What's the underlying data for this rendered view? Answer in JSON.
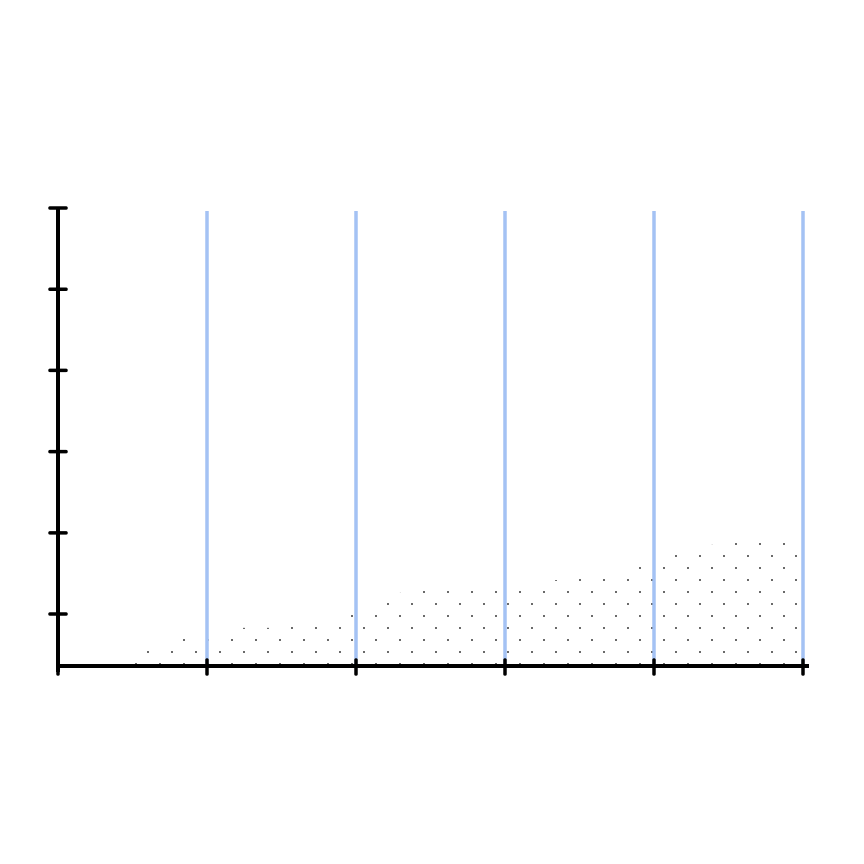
{
  "chart_data": {
    "type": "area",
    "x": [
      0.42,
      0.75,
      1.15,
      1.49,
      1.83,
      2.09,
      2.43,
      2.97,
      3.37,
      3.7,
      4.04,
      4.38,
      4.71,
      4.98
    ],
    "values": [
      0.43,
      0.72,
      0.83,
      0.83,
      0.93,
      1.11,
      1.36,
      1.39,
      1.42,
      1.52,
      1.73,
      1.85,
      1.95,
      1.97
    ],
    "color": "#000000",
    "xlim": [
      0,
      5
    ],
    "xticks": [
      0,
      1,
      2,
      3,
      4,
      5
    ],
    "ylim": [
      0.36,
      6
    ],
    "yticks": [
      1,
      2,
      3,
      4,
      5,
      6
    ],
    "grid_color": "#a4c2f4",
    "grid": true
  }
}
